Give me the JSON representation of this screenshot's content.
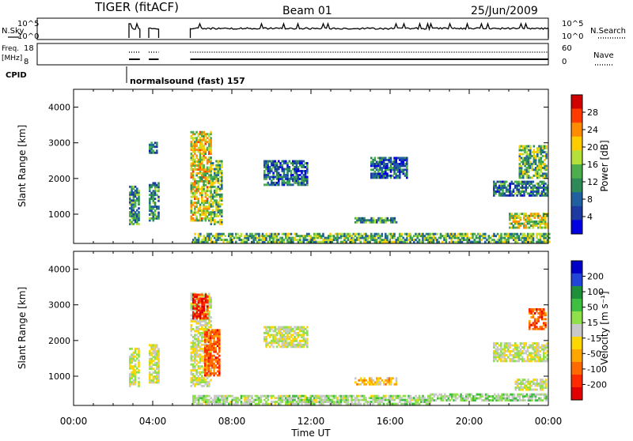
{
  "header": {
    "station": "TIGER (fitACF)",
    "beam": "Beam 01",
    "date": "25/Jun/2009"
  },
  "strip_labels": {
    "nsky": "N.Sky",
    "nsky_ticks": [
      "10^5",
      "10^0"
    ],
    "nsearch": "N.Search",
    "nsearch_ticks": [
      "10^5",
      "10^0"
    ],
    "freq": "Freq.",
    "freq_unit": "[MHz]",
    "freq_ticks": [
      "18",
      "8"
    ],
    "nave": "Nave",
    "nave_ticks": [
      "60",
      "0"
    ],
    "cpid": "CPID",
    "cpid_value": "normalsound (fast) 157"
  },
  "panels": {
    "power": {
      "ylabel": "Slant Range [km]",
      "cbar_label": "Power [dB]",
      "cbar_ticks": [
        "28",
        "24",
        "20",
        "16",
        "12",
        "8",
        "4"
      ],
      "cbar_colors": [
        "#d00000",
        "#ff3b00",
        "#ff8c00",
        "#ffcc00",
        "#b4e03c",
        "#4cae4c",
        "#2e8b57",
        "#2060a0",
        "#1c3aa0",
        "#0000e0"
      ]
    },
    "velocity": {
      "ylabel": "Slant Range [km]",
      "cbar_label": "Velocity [m s⁻¹]",
      "cbar_ticks": [
        "200",
        "100",
        "50",
        "15",
        "-15",
        "-50",
        "-100",
        "-200"
      ],
      "cbar_colors": [
        "#0000c8",
        "#2244d8",
        "#1f8f3a",
        "#3fbf3f",
        "#8fe04a",
        "#c8c8c8",
        "#ffd700",
        "#ffa500",
        "#ff6a00",
        "#ff2a00",
        "#e00000"
      ]
    }
  },
  "chart_data": {
    "type": "heatmap",
    "x_tick_labels": [
      "00:00",
      "04:00",
      "08:00",
      "12:00",
      "16:00",
      "20:00",
      "00:00"
    ],
    "xlabel": "Time UT",
    "xlim_hours": [
      0,
      24
    ],
    "ylim_km": [
      180,
      4500
    ],
    "y_tick_labels": [
      "1000",
      "2000",
      "3000",
      "4000"
    ],
    "y_ticks": [
      1000,
      2000,
      3000,
      4000
    ],
    "power_blobs": [
      {
        "t": [
          2.8,
          3.3
        ],
        "r": [
          700,
          1750
        ],
        "v": 10
      },
      {
        "t": [
          3.8,
          4.3
        ],
        "r": [
          800,
          1900
        ],
        "v": 10
      },
      {
        "t": [
          3.8,
          4.2
        ],
        "r": [
          2700,
          3000
        ],
        "v": 8
      },
      {
        "t": [
          5.9,
          6.9
        ],
        "r": [
          800,
          3300
        ],
        "v": 18
      },
      {
        "t": [
          6.9,
          7.5
        ],
        "r": [
          700,
          2500
        ],
        "v": 14
      },
      {
        "t": [
          9.6,
          11.8
        ],
        "r": [
          1800,
          2500
        ],
        "v": 8
      },
      {
        "t": [
          14.2,
          16.3
        ],
        "r": [
          750,
          900
        ],
        "v": 11
      },
      {
        "t": [
          15.0,
          16.8
        ],
        "r": [
          2000,
          2600
        ],
        "v": 7
      },
      {
        "t": [
          21.2,
          23.9
        ],
        "r": [
          1500,
          1900
        ],
        "v": 9
      },
      {
        "t": [
          22.0,
          23.9
        ],
        "r": [
          600,
          1000
        ],
        "v": 17
      },
      {
        "t": [
          22.5,
          23.9
        ],
        "r": [
          2000,
          2900
        ],
        "v": 14
      },
      {
        "t": [
          6.0,
          24.0
        ],
        "r": [
          200,
          450
        ],
        "v": 13
      }
    ],
    "velocity_blobs": [
      {
        "t": [
          2.8,
          3.3
        ],
        "r": [
          700,
          1800
        ],
        "v": 0
      },
      {
        "t": [
          3.8,
          4.3
        ],
        "r": [
          800,
          1900
        ],
        "v": 0
      },
      {
        "t": [
          5.9,
          6.9
        ],
        "r": [
          700,
          3300
        ],
        "v": 0
      },
      {
        "t": [
          6.6,
          7.4
        ],
        "r": [
          1000,
          2300
        ],
        "v": -150
      },
      {
        "t": [
          6.0,
          6.8
        ],
        "r": [
          2600,
          3300
        ],
        "v": -200
      },
      {
        "t": [
          9.6,
          11.8
        ],
        "r": [
          1800,
          2400
        ],
        "v": 0
      },
      {
        "t": [
          14.2,
          16.3
        ],
        "r": [
          750,
          950
        ],
        "v": -60
      },
      {
        "t": [
          18.0,
          23.9
        ],
        "r": [
          300,
          500
        ],
        "v": 40
      },
      {
        "t": [
          22.3,
          23.9
        ],
        "r": [
          600,
          900
        ],
        "v": 0
      },
      {
        "t": [
          23.0,
          23.9
        ],
        "r": [
          2300,
          2900
        ],
        "v": -150
      },
      {
        "t": [
          21.2,
          23.9
        ],
        "r": [
          1400,
          1900
        ],
        "v": 0
      },
      {
        "t": [
          6.0,
          18.0
        ],
        "r": [
          200,
          450
        ],
        "v": 30
      }
    ]
  }
}
